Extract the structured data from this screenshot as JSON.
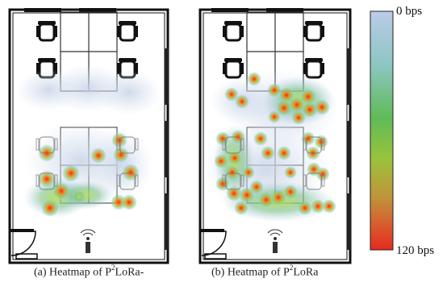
{
  "colorbar": {
    "top_label": "0 bps",
    "bottom_label": "120 bps",
    "colors": [
      "#b8c8e8",
      "#8fc6c8",
      "#5bb88a",
      "#6fc04a",
      "#9bc43a",
      "#c8a838",
      "#e07030",
      "#e83020"
    ]
  },
  "panels": [
    {
      "caption_prefix": "(a)  Heatmap of P",
      "caption_sup": "2",
      "caption_suffix": "LoRa-",
      "hotspot_color": "#e8301f"
    },
    {
      "caption_prefix": "(b)  Heatmap of P",
      "caption_sup": "2",
      "caption_suffix": "LoRa",
      "hotspot_color": "#e8301f"
    }
  ],
  "gateway_icon": "radio-antenna-icon"
}
